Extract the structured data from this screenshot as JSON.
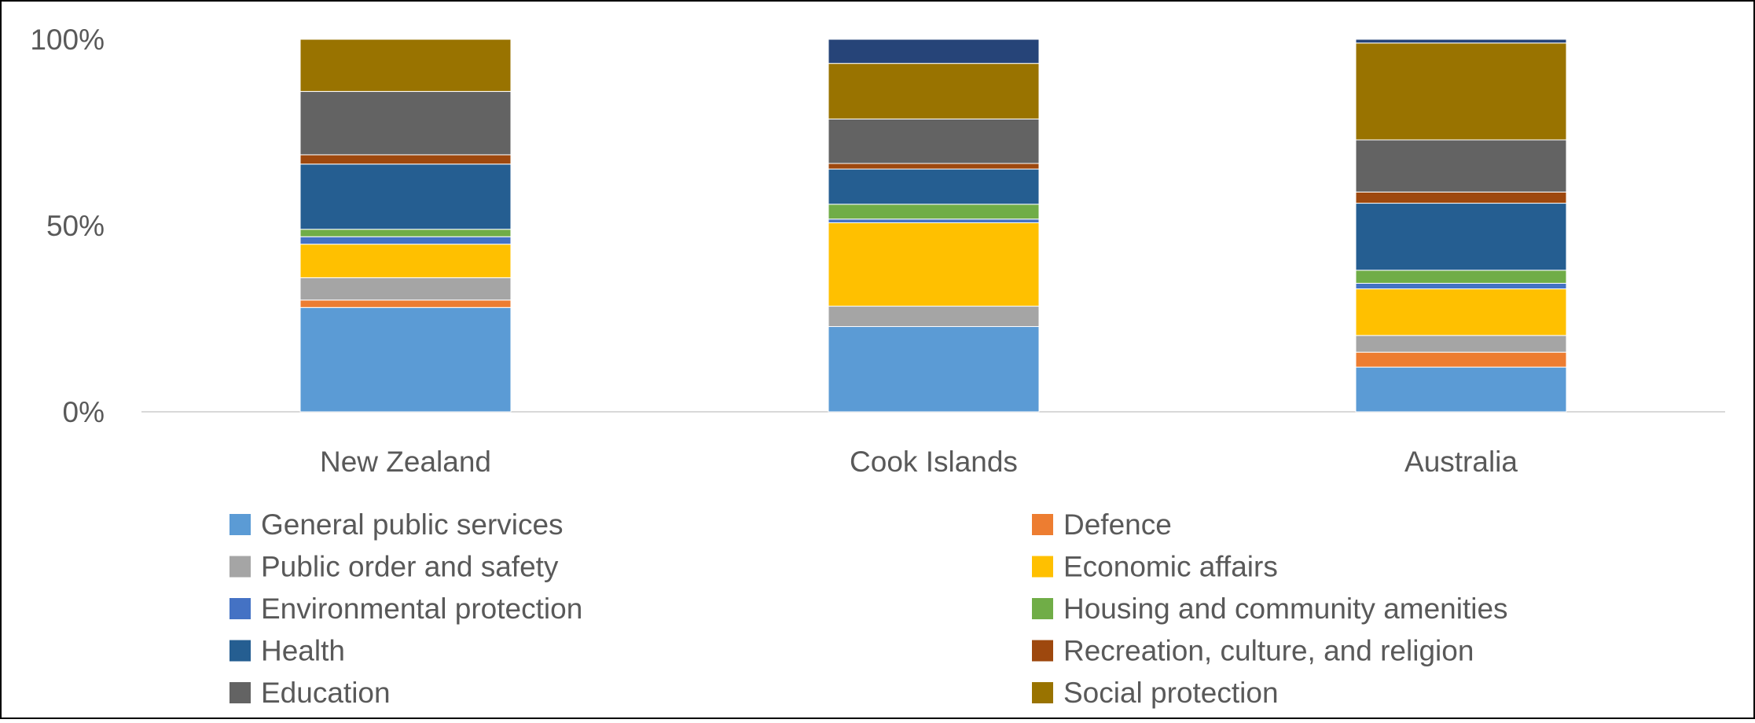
{
  "chart_data": {
    "type": "bar",
    "stacked": true,
    "percent": true,
    "categories": [
      "New Zealand",
      "Cook Islands",
      "Australia"
    ],
    "ylim": [
      0,
      100
    ],
    "y_ticks": [
      "0%",
      "50%",
      "100%"
    ],
    "gridlines": false,
    "legend_position": "bottom",
    "series": [
      {
        "name": "General public services",
        "color": "#5B9BD5",
        "values": [
          28,
          23,
          12
        ]
      },
      {
        "name": "Defence",
        "color": "#ED7D31",
        "values": [
          2,
          0,
          4
        ]
      },
      {
        "name": "Public order and safety",
        "color": "#A5A5A5",
        "values": [
          6,
          5.5,
          4.5
        ]
      },
      {
        "name": "Economic affairs",
        "color": "#FFC000",
        "values": [
          9,
          22.5,
          12.5
        ]
      },
      {
        "name": "Environmental protection",
        "color": "#4472C4",
        "values": [
          2,
          1,
          1.5
        ]
      },
      {
        "name": "Housing and community amenities",
        "color": "#70AD47",
        "values": [
          2,
          4,
          3.5
        ]
      },
      {
        "name": "Health",
        "color": "#255E91",
        "values": [
          17.5,
          9.5,
          18
        ]
      },
      {
        "name": "Recreation, culture, and religion",
        "color": "#9E480E",
        "values": [
          2.5,
          1.5,
          3
        ]
      },
      {
        "name": "Education",
        "color": "#636363",
        "values": [
          17,
          12,
          14
        ]
      },
      {
        "name": "Social protection",
        "color": "#997300",
        "values": [
          14,
          15,
          26
        ]
      },
      {
        "name": "",
        "color": "#264478",
        "values": [
          0,
          6.5,
          1
        ]
      }
    ]
  }
}
